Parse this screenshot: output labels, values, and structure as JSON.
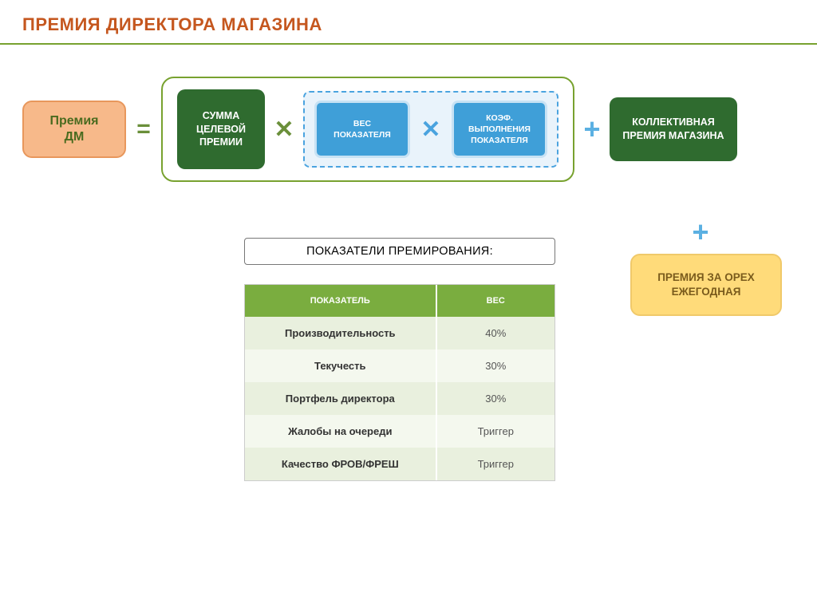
{
  "title": "ПРЕМИЯ ДИРЕКТОРА МАГАЗИНА",
  "colors": {
    "title": "#c5571f",
    "hr": "#78a22f",
    "premia_dm_bg": "#f7b98a",
    "premia_dm_border": "#e8975c",
    "premia_dm_text": "#4a6b1f",
    "equals": "#6a8f3a",
    "container_border": "#78a22f",
    "sum_bg": "#2f6b2f",
    "mult_green": "#6a8f3a",
    "dotted_border": "#4aa3df",
    "dotted_bg": "#e9f3fb",
    "blue_bg": "#3f9fd8",
    "blue_border": "#c7e2f4",
    "mult_blue": "#4aa3df",
    "plus_blue": "#5bb0e2",
    "collective_bg": "#2f6b2f",
    "orex_bg": "#ffdb7a",
    "orex_border": "#f0c96a",
    "orex_text": "#7a5b1c",
    "th_bg": "#7aad3f",
    "row_even": "#e9f0de",
    "row_odd": "#f4f8ee",
    "indicators_border": "#777777"
  },
  "formula": {
    "premia_dm": "Премия\nДМ",
    "equals": "=",
    "sum_target": "СУММА\nЦЕЛЕВОЙ\nПРЕМИИ",
    "mult1": "✕",
    "weight": "ВЕС\nПОКАЗАТЕЛЯ",
    "mult2": "✕",
    "coef": "КОЭФ.\nВЫПОЛНЕНИЯ\nПОКАЗАТЕЛЯ",
    "plus1": "+",
    "collective": "КОЛЛЕКТИВНАЯ\nПРЕМИЯ МАГАЗИНА",
    "plus2": "+",
    "orex": "ПРЕМИЯ ЗА ОРЕХ\nЕЖЕГОДНАЯ"
  },
  "indicators_label": "ПОКАЗАТЕЛИ ПРЕМИРОВАНИЯ:",
  "table": {
    "columns": [
      "ПОКАЗАТЕЛЬ",
      "ВЕС"
    ],
    "col_widths": [
      "62%",
      "38%"
    ],
    "header_bg": "#7aad3f",
    "rows": [
      {
        "label": "Производительность",
        "value": "40%"
      },
      {
        "label": "Текучесть",
        "value": "30%"
      },
      {
        "label": "Портфель директора",
        "value": "30%"
      },
      {
        "label": "Жалобы на очереди",
        "value": "Триггер"
      },
      {
        "label": "Качество ФРОВ/ФРЕШ",
        "value": "Триггер"
      }
    ],
    "row_colors": [
      "#e9f0de",
      "#f4f8ee"
    ]
  }
}
